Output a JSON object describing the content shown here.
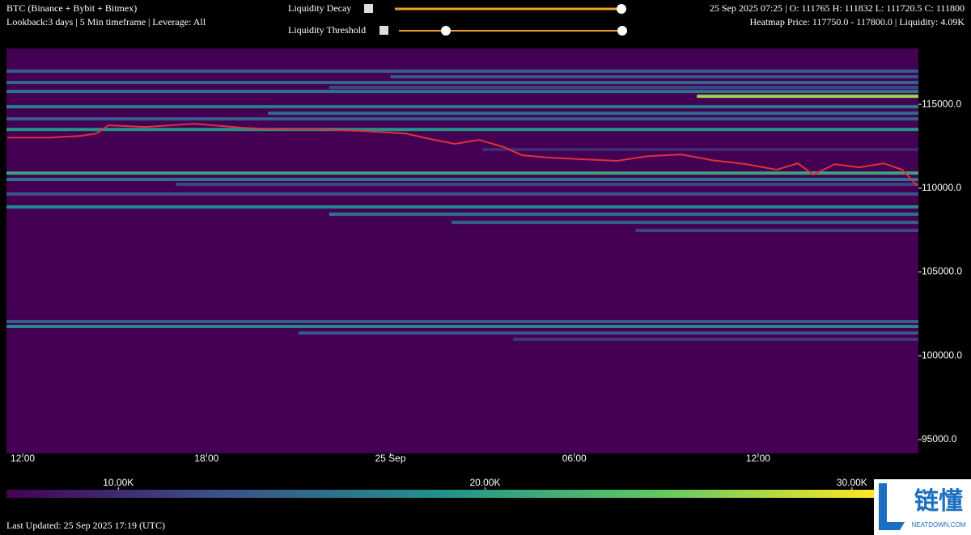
{
  "header": {
    "symbol": "BTC (Binance + Bybit + Bitmex)",
    "info": "Lookback:3 days | 5 Min timeframe | Leverage: All",
    "decay_label": "Liquidity Decay",
    "threshold_label": "Liquidity Threshold",
    "ohlc": "25 Sep 2025 07:25 | O: 111765 H: 111832 L: 111720.5 C: 111800",
    "hover": "Heatmap Price: 117750.0 - 117800.0 | Liquidity: 4.09K"
  },
  "footer": "Last Updated: 25 Sep 2025 17:19 (UTC)",
  "watermark": {
    "brand": "链懂",
    "site": "NEATDOWN.COM"
  },
  "chart_data": {
    "type": "heatmap",
    "colormap": "viridis",
    "background": "#440154",
    "xlim": [
      -0.53,
      29.23
    ],
    "xticks": [
      {
        "value": 0,
        "label": "12:00"
      },
      {
        "value": 6,
        "label": "18:00"
      },
      {
        "value": 12,
        "label": "25 Sep"
      },
      {
        "value": 18,
        "label": "06:00"
      },
      {
        "value": 24,
        "label": "12:00"
      }
    ],
    "ylim": [
      94180,
      118330
    ],
    "yticks": [
      {
        "value": 115000,
        "label": "115000.0"
      },
      {
        "value": 110000,
        "label": "110000.0"
      },
      {
        "value": 105000,
        "label": "105000.0"
      },
      {
        "value": 100000,
        "label": "100000.0"
      },
      {
        "value": 95000,
        "label": "95000.0"
      }
    ],
    "bands": {
      "price": [
        116976,
        116640,
        116300,
        116010,
        115770,
        115480,
        114855,
        114470,
        114130,
        113500,
        112300,
        110900,
        110520,
        110230,
        109650,
        108880,
        108445,
        107960,
        107480,
        102040,
        101750,
        101360,
        100980
      ],
      "start": [
        -0.53,
        12,
        -0.53,
        10,
        -0.53,
        22,
        -0.53,
        8,
        -0.53,
        -0.53,
        15,
        -0.53,
        -0.53,
        5,
        -0.53,
        -0.53,
        10,
        14,
        20,
        -0.53,
        -0.53,
        9,
        16
      ],
      "liquidity": [
        14,
        13,
        15,
        12,
        16,
        27,
        17,
        15,
        14,
        19,
        10,
        21,
        16,
        12,
        13,
        18,
        16,
        14,
        12,
        14,
        18,
        13,
        11
      ]
    },
    "series": [
      {
        "name": "BTC",
        "color": "#e0303a",
        "x": [
          -0.5,
          0.9,
          1.9,
          2.4,
          2.8,
          4.0,
          5.6,
          7.2,
          8.5,
          9.8,
          11.2,
          12.5,
          13.3,
          14.1,
          14.9,
          15.7,
          16.3,
          17.2,
          18.3,
          19.4,
          20.4,
          21.5,
          22.5,
          23.6,
          24.6,
          25.3,
          25.8,
          26.5,
          27.3,
          28.1,
          28.7,
          29.2
        ],
        "values": [
          113020,
          113020,
          113120,
          113260,
          113750,
          113650,
          113840,
          113600,
          113500,
          113500,
          113400,
          113260,
          112930,
          112640,
          112880,
          112450,
          111960,
          111820,
          111720,
          111630,
          111910,
          112010,
          111670,
          111430,
          111100,
          111480,
          110800,
          111430,
          111240,
          111480,
          111100,
          110130
        ]
      }
    ],
    "colorbar": {
      "lim": [
        6.95,
        30.6
      ],
      "ticks": [
        {
          "value": 10,
          "label": "10.00K"
        },
        {
          "value": 20,
          "label": "20.00K"
        },
        {
          "value": 30,
          "label": "30.00K"
        }
      ]
    }
  }
}
